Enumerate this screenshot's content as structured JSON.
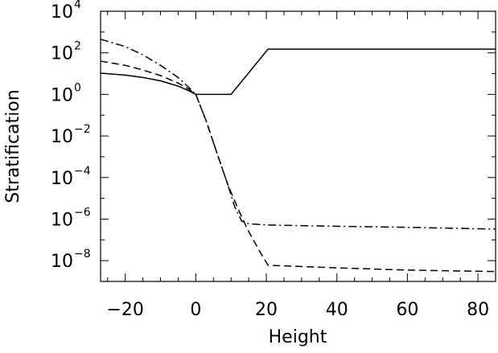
{
  "chart_data": {
    "type": "line",
    "xlabel": "Height",
    "ylabel": "Stratification",
    "xlim": [
      -27,
      85
    ],
    "ylim_log10": [
      -9,
      4
    ],
    "y_scale": "log",
    "x_ticks": [
      -20,
      0,
      20,
      40,
      60,
      80
    ],
    "x_tick_labels": [
      "−20",
      "0",
      "20",
      "40",
      "60",
      "80"
    ],
    "y_tick_exponents": [
      4,
      2,
      0,
      -2,
      -4,
      -6,
      -8
    ],
    "y_tick_labels": [
      {
        "base": "10",
        "exp": "4"
      },
      {
        "base": "10",
        "exp": "2"
      },
      {
        "base": "10",
        "exp": "0"
      },
      {
        "base": "10",
        "exp": "−2"
      },
      {
        "base": "10",
        "exp": "−4"
      },
      {
        "base": "10",
        "exp": "−6"
      },
      {
        "base": "10",
        "exp": "−8"
      }
    ],
    "series": [
      {
        "style": "solid",
        "points": [
          [
            -27,
            10.5
          ],
          [
            -20,
            8.5
          ],
          [
            -15,
            6.5
          ],
          [
            -10,
            4.5
          ],
          [
            -5,
            2.5
          ],
          [
            -2,
            1.5
          ],
          [
            0,
            1.0
          ],
          [
            10,
            1.0
          ],
          [
            20.5,
            150
          ],
          [
            85,
            150
          ]
        ]
      },
      {
        "style": "dashed",
        "points": [
          [
            -27,
            40
          ],
          [
            -20,
            25
          ],
          [
            -15,
            15
          ],
          [
            -10,
            8
          ],
          [
            -5,
            3.5
          ],
          [
            -2,
            1.8
          ],
          [
            0,
            1.0
          ],
          [
            3,
            0.05
          ],
          [
            6,
            0.0015
          ],
          [
            9,
            5e-05
          ],
          [
            12,
            3e-06
          ],
          [
            15,
            2.5e-07
          ],
          [
            18,
            3e-08
          ],
          [
            20.5,
            6e-09
          ],
          [
            40,
            4.5e-09
          ],
          [
            60,
            3.5e-09
          ],
          [
            85,
            3e-09
          ]
        ]
      },
      {
        "style": "dash-dot",
        "points": [
          [
            -27,
            450
          ],
          [
            -20,
            200
          ],
          [
            -15,
            80
          ],
          [
            -10,
            25
          ],
          [
            -5,
            6.5
          ],
          [
            -2,
            2.2
          ],
          [
            0,
            1.0
          ],
          [
            3,
            0.05
          ],
          [
            6,
            0.0015
          ],
          [
            9,
            5e-05
          ],
          [
            11,
            4e-06
          ],
          [
            13,
            8e-07
          ],
          [
            15,
            6e-07
          ],
          [
            20,
            5.2e-07
          ],
          [
            40,
            4.5e-07
          ],
          [
            60,
            4e-07
          ],
          [
            85,
            3.3e-07
          ]
        ]
      }
    ]
  }
}
